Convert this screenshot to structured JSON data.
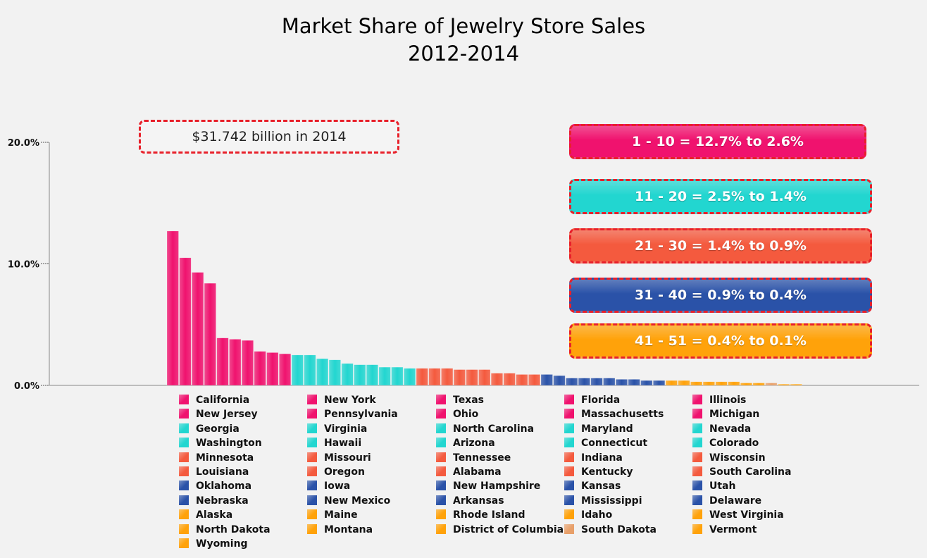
{
  "chart_data": {
    "type": "bar",
    "title": "Market Share of Jewelry Store Sales",
    "subtitle": "2012-2014",
    "ylim": [
      0,
      20
    ],
    "y_ticks": [
      "0.0%",
      "10.0%",
      "20.0%"
    ],
    "grid": false,
    "legend": "bottom",
    "annotation": "$31.742 billion in 2014",
    "ranges": [
      {
        "label": "1 - 10 = 12.7% to 2.6%",
        "color": "#f0126e"
      },
      {
        "label": "11 - 20 = 2.5% to 1.4%",
        "color": "#22d6d0"
      },
      {
        "label": "21 - 30 = 1.4% to 0.9%",
        "color": "#f45a3e"
      },
      {
        "label": "31 - 40 = 0.9% to 0.4%",
        "color": "#2a52a8"
      },
      {
        "label": "41 - 51 = 0.4% to 0.1%",
        "color": "#ffa20a"
      }
    ],
    "categories": [
      "California",
      "New York",
      "Texas",
      "Florida",
      "Illinois",
      "New Jersey",
      "Pennsylvania",
      "Ohio",
      "Massachusetts",
      "Michigan",
      "Georgia",
      "Virginia",
      "North Carolina",
      "Maryland",
      "Nevada",
      "Washington",
      "Hawaii",
      "Arizona",
      "Connecticut",
      "Colorado",
      "Minnesota",
      "Missouri",
      "Tennessee",
      "Indiana",
      "Wisconsin",
      "Louisiana",
      "Oregon",
      "Alabama",
      "Kentucky",
      "South Carolina",
      "Oklahoma",
      "Iowa",
      "New Hampshire",
      "Kansas",
      "Utah",
      "Nebraska",
      "New Mexico",
      "Arkansas",
      "Mississippi",
      "Delaware",
      "Alaska",
      "Maine",
      "Rhode Island",
      "Idaho",
      "West Virginia",
      "North Dakota",
      "Montana",
      "District of Columbia",
      "South Dakota",
      "Vermont",
      "Wyoming"
    ],
    "values": [
      12.7,
      10.5,
      9.3,
      8.4,
      3.9,
      3.8,
      3.7,
      2.8,
      2.7,
      2.6,
      2.5,
      2.5,
      2.2,
      2.1,
      1.8,
      1.7,
      1.7,
      1.5,
      1.5,
      1.4,
      1.4,
      1.4,
      1.4,
      1.3,
      1.3,
      1.3,
      1.0,
      1.0,
      0.9,
      0.9,
      0.9,
      0.8,
      0.6,
      0.6,
      0.6,
      0.6,
      0.5,
      0.5,
      0.4,
      0.4,
      0.4,
      0.4,
      0.3,
      0.3,
      0.3,
      0.3,
      0.2,
      0.2,
      0.2,
      0.1,
      0.1
    ],
    "groups": [
      0,
      0,
      0,
      0,
      0,
      0,
      0,
      0,
      0,
      0,
      1,
      1,
      1,
      1,
      1,
      1,
      1,
      1,
      1,
      1,
      2,
      2,
      2,
      2,
      2,
      2,
      2,
      2,
      2,
      2,
      3,
      3,
      3,
      3,
      3,
      3,
      3,
      3,
      3,
      3,
      4,
      4,
      4,
      4,
      4,
      4,
      4,
      4,
      5,
      4,
      4
    ],
    "colors": [
      "#f0126e",
      "#22d6d0",
      "#f45a3e",
      "#2a52a8",
      "#ffa20a",
      "#e8a06a"
    ]
  }
}
